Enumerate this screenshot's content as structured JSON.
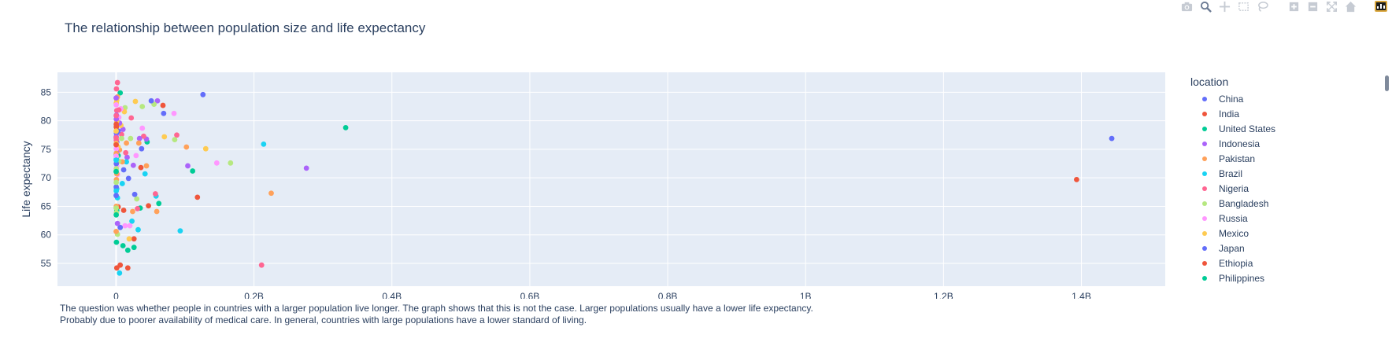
{
  "chart_title": "The relationship between population size and life expectancy",
  "modebar": {
    "icons": [
      "camera-icon",
      "zoom-icon",
      "pan-icon",
      "box-select-icon",
      "lasso-icon",
      "zoom-in-icon",
      "zoom-out-icon",
      "autoscale-icon",
      "reset-axes-icon",
      "plotly-logo-icon"
    ]
  },
  "legend": {
    "title": "location",
    "items": [
      {
        "label": "China",
        "color": "#636efa"
      },
      {
        "label": "India",
        "color": "#EF553B"
      },
      {
        "label": "United States",
        "color": "#00cc96"
      },
      {
        "label": "Indonesia",
        "color": "#ab63fa"
      },
      {
        "label": "Pakistan",
        "color": "#FFA15A"
      },
      {
        "label": "Brazil",
        "color": "#19d3f3"
      },
      {
        "label": "Nigeria",
        "color": "#FF6692"
      },
      {
        "label": "Bangladesh",
        "color": "#B6E880"
      },
      {
        "label": "Russia",
        "color": "#FF97FF"
      },
      {
        "label": "Mexico",
        "color": "#FECB52"
      },
      {
        "label": "Japan",
        "color": "#636efa"
      },
      {
        "label": "Ethiopia",
        "color": "#EF553B"
      },
      {
        "label": "Philippines",
        "color": "#00cc96"
      }
    ]
  },
  "annotation": {
    "line1": "The question was whether people in countries with a larger population live longer. The graph shows that this is not the case. Larger populations usually have a lower life expectancy.",
    "line2": "Probably due to poorer availability of medical care. In general, countries with large populations have a lower standard of living."
  },
  "chart_data": {
    "type": "scatter",
    "title": "The relationship between population size and life expectancy",
    "xlabel": "",
    "ylabel": "Life expectancy",
    "xlim": [
      -0.085,
      1.525
    ],
    "ylim": [
      51.0,
      88.5
    ],
    "xticks": [
      {
        "v": 0,
        "label": "0"
      },
      {
        "v": 0.2,
        "label": "0.2B"
      },
      {
        "v": 0.4,
        "label": "0.4B"
      },
      {
        "v": 0.6,
        "label": "0.6B"
      },
      {
        "v": 0.8,
        "label": "0.8B"
      },
      {
        "v": 1.0,
        "label": "1B"
      },
      {
        "v": 1.2,
        "label": "1.2B"
      },
      {
        "v": 1.4,
        "label": "1.4B"
      }
    ],
    "yticks": [
      55,
      60,
      65,
      70,
      75,
      80,
      85
    ],
    "x_units": "billions (population)",
    "grid": true,
    "legend_position": "right",
    "palette": [
      "#636efa",
      "#EF553B",
      "#00cc96",
      "#ab63fa",
      "#FFA15A",
      "#19d3f3",
      "#FF6692",
      "#B6E880",
      "#FF97FF",
      "#FECB52"
    ],
    "points": [
      [
        1.444,
        76.9,
        0
      ],
      [
        1.393,
        69.7,
        1
      ],
      [
        0.333,
        78.8,
        2
      ],
      [
        0.276,
        71.7,
        3
      ],
      [
        0.225,
        67.3,
        4
      ],
      [
        0.214,
        75.9,
        5
      ],
      [
        0.211,
        54.7,
        6
      ],
      [
        0.166,
        72.6,
        7
      ],
      [
        0.146,
        72.6,
        8
      ],
      [
        0.13,
        75.1,
        9
      ],
      [
        0.126,
        84.6,
        0
      ],
      [
        0.118,
        66.6,
        1
      ],
      [
        0.111,
        71.2,
        2
      ],
      [
        0.104,
        72.1,
        3
      ],
      [
        0.102,
        75.4,
        4
      ],
      [
        0.093,
        60.7,
        5
      ],
      [
        0.088,
        77.5,
        6
      ],
      [
        0.085,
        76.7,
        7
      ],
      [
        0.084,
        81.3,
        8
      ],
      [
        0.07,
        77.2,
        9
      ],
      [
        0.069,
        81.3,
        0
      ],
      [
        0.068,
        82.7,
        1
      ],
      [
        0.062,
        65.5,
        2
      ],
      [
        0.06,
        83.5,
        3
      ],
      [
        0.059,
        64.1,
        4
      ],
      [
        0.058,
        66.8,
        5
      ],
      [
        0.057,
        67.2,
        6
      ],
      [
        0.055,
        82.9,
        7
      ],
      [
        0.051,
        83.5,
        0
      ],
      [
        0.047,
        65.1,
        1
      ],
      [
        0.045,
        76.3,
        2
      ],
      [
        0.044,
        76.8,
        3
      ],
      [
        0.044,
        72.1,
        4
      ],
      [
        0.042,
        70.7,
        5
      ],
      [
        0.04,
        77.3,
        6
      ],
      [
        0.038,
        82.5,
        7
      ],
      [
        0.038,
        78.7,
        8
      ],
      [
        0.037,
        75.1,
        0
      ],
      [
        0.036,
        71.8,
        1
      ],
      [
        0.035,
        64.7,
        2
      ],
      [
        0.034,
        76.9,
        3
      ],
      [
        0.033,
        76.1,
        4
      ],
      [
        0.032,
        60.9,
        5
      ],
      [
        0.031,
        64.6,
        6
      ],
      [
        0.03,
        66.3,
        7
      ],
      [
        0.029,
        73.9,
        8
      ],
      [
        0.028,
        83.4,
        9
      ],
      [
        0.027,
        67.1,
        0
      ],
      [
        0.026,
        59.3,
        1
      ],
      [
        0.026,
        57.8,
        2
      ],
      [
        0.025,
        72.2,
        3
      ],
      [
        0.024,
        64.1,
        4
      ],
      [
        0.023,
        62.4,
        5
      ],
      [
        0.022,
        80.5,
        6
      ],
      [
        0.021,
        76.9,
        7
      ],
      [
        0.02,
        61.6,
        8
      ],
      [
        0.019,
        59.3,
        9
      ],
      [
        0.018,
        69.9,
        0
      ],
      [
        0.017,
        54.2,
        1
      ],
      [
        0.017,
        57.3,
        2
      ],
      [
        0.016,
        73.6,
        3
      ],
      [
        0.015,
        76.1,
        4
      ],
      [
        0.015,
        72.8,
        5
      ],
      [
        0.014,
        74.4,
        6
      ],
      [
        0.013,
        82.3,
        7
      ],
      [
        0.013,
        61.6,
        8
      ],
      [
        0.012,
        81.6,
        9
      ],
      [
        0.011,
        71.4,
        0
      ],
      [
        0.011,
        64.3,
        1
      ],
      [
        0.01,
        58.1,
        2
      ],
      [
        0.01,
        78.5,
        3
      ],
      [
        0.009,
        72.8,
        4
      ],
      [
        0.009,
        69.0,
        5
      ],
      [
        0.008,
        77.6,
        6
      ],
      [
        0.008,
        76.9,
        7
      ],
      [
        0.007,
        82.1,
        8
      ],
      [
        0.007,
        79.2,
        9
      ],
      [
        0.006,
        61.3,
        0
      ],
      [
        0.006,
        54.7,
        1
      ],
      [
        0.006,
        84.9,
        2
      ],
      [
        0.005,
        79.6,
        3
      ],
      [
        0.005,
        74.9,
        4
      ],
      [
        0.005,
        53.3,
        5
      ],
      [
        0.004,
        81.9,
        6
      ],
      [
        0.004,
        72.9,
        7
      ],
      [
        0.004,
        80.6,
        8
      ],
      [
        0.003,
        75.4,
        9
      ],
      [
        0.003,
        78.2,
        0
      ],
      [
        0.003,
        64.9,
        1
      ],
      [
        0.003,
        73.9,
        2
      ],
      [
        0.002,
        62.0,
        3
      ],
      [
        0.002,
        84.2,
        4
      ],
      [
        0.002,
        66.5,
        5
      ],
      [
        0.002,
        86.7,
        6
      ],
      [
        0.002,
        60.1,
        7
      ],
      [
        0.002,
        70.6,
        8
      ],
      [
        0.001,
        83.6,
        9
      ],
      [
        0.001,
        76.3,
        0
      ],
      [
        0.001,
        54.2,
        1
      ],
      [
        0.001,
        64.3,
        2
      ],
      [
        0.001,
        74.4,
        3
      ],
      [
        0.001,
        70.7,
        4
      ],
      [
        0.001,
        68.1,
        5
      ],
      [
        0.001,
        81.8,
        6
      ],
      [
        0.001,
        73.6,
        7
      ],
      [
        0.001,
        72.1,
        8
      ],
      [
        0.001,
        79.9,
        9
      ],
      [
        0.0005,
        77.8,
        0
      ],
      [
        0.0005,
        79.0,
        1
      ],
      [
        0.0005,
        58.7,
        2
      ],
      [
        0.0005,
        81.0,
        3
      ],
      [
        0.0005,
        69.7,
        4
      ],
      [
        0.0005,
        68.1,
        5
      ],
      [
        0.0005,
        85.6,
        6
      ],
      [
        0.0005,
        63.9,
        7
      ],
      [
        0.0003,
        75.1,
        8
      ],
      [
        0.0003,
        83.1,
        9
      ],
      [
        0.0003,
        72.5,
        0
      ],
      [
        0.0003,
        78.9,
        1
      ],
      [
        0.0003,
        74.0,
        2
      ],
      [
        0.0003,
        80.3,
        3
      ],
      [
        0.0003,
        65.0,
        4
      ],
      [
        0.0003,
        73.3,
        5
      ],
      [
        0.0003,
        76.6,
        6
      ],
      [
        0.0003,
        71.6,
        7
      ],
      [
        0.0002,
        82.8,
        8
      ],
      [
        0.0002,
        76.0,
        9
      ],
      [
        0.0002,
        68.4,
        0
      ],
      [
        0.0002,
        79.4,
        1
      ],
      [
        0.0002,
        63.5,
        2
      ],
      [
        0.0002,
        77.2,
        3
      ],
      [
        0.0002,
        74.3,
        4
      ],
      [
        0.0002,
        67.7,
        5
      ],
      [
        0.0002,
        80.9,
        6
      ],
      [
        0.0002,
        69.2,
        7
      ],
      [
        0.0001,
        73.8,
        8
      ],
      [
        0.0001,
        78.2,
        9
      ],
      [
        0.0001,
        66.9,
        0
      ],
      [
        0.0001,
        75.8,
        1
      ],
      [
        0.0001,
        71.1,
        2
      ],
      [
        0.0001,
        84.0,
        3
      ],
      [
        0.0001,
        60.6,
        4
      ],
      [
        0.0001,
        73.1,
        5
      ],
      [
        0.0001,
        77.0,
        6
      ],
      [
        0.0001,
        64.7,
        7
      ]
    ]
  }
}
